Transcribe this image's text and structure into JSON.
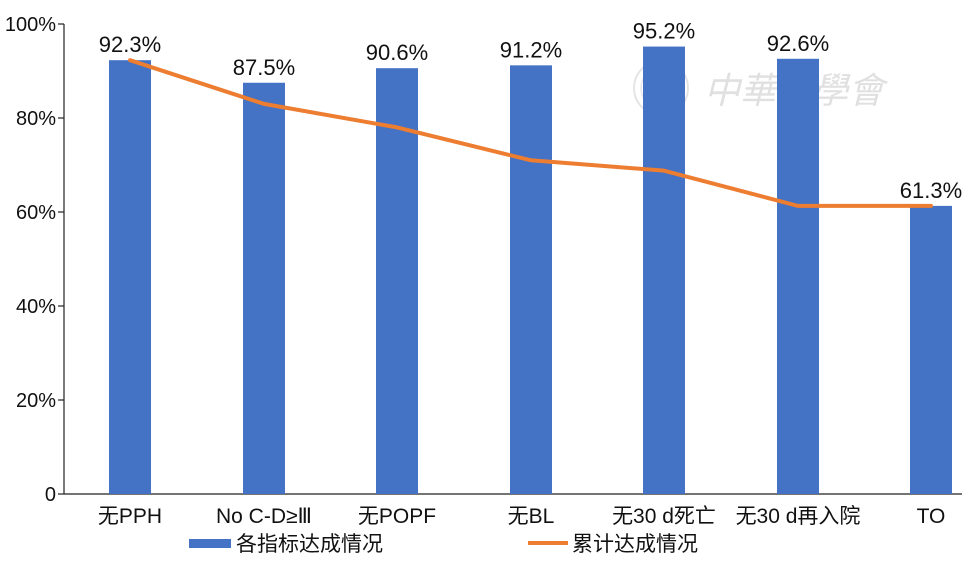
{
  "chart_data": {
    "type": "bar",
    "categories": [
      "无PPH",
      "No C-D≥Ⅲ",
      "无POPF",
      "无BL",
      "无30 d死亡",
      "无30 d再入院",
      "TO"
    ],
    "series": [
      {
        "name": "各指标达成情况",
        "type": "bar",
        "values": [
          92.3,
          87.5,
          90.6,
          91.2,
          95.2,
          92.6,
          61.3
        ],
        "color": "#4472c4"
      },
      {
        "name": "累计达成情况",
        "type": "line",
        "values": [
          92.3,
          83.0,
          78.0,
          71.0,
          68.8,
          61.3,
          61.3
        ],
        "color": "#ed7d31"
      }
    ],
    "data_labels": [
      "92.3%",
      "87.5%",
      "90.6%",
      "91.2%",
      "95.2%",
      "92.6%",
      "61.3%"
    ],
    "y_ticks": [
      "0",
      "20%",
      "40%",
      "60%",
      "80%",
      "100%"
    ],
    "y_tick_values": [
      0,
      20,
      40,
      60,
      80,
      100
    ],
    "ylim": [
      0,
      100
    ],
    "grid": false,
    "legend_position": "bottom"
  },
  "watermark": {
    "text": "中華醫學會"
  }
}
